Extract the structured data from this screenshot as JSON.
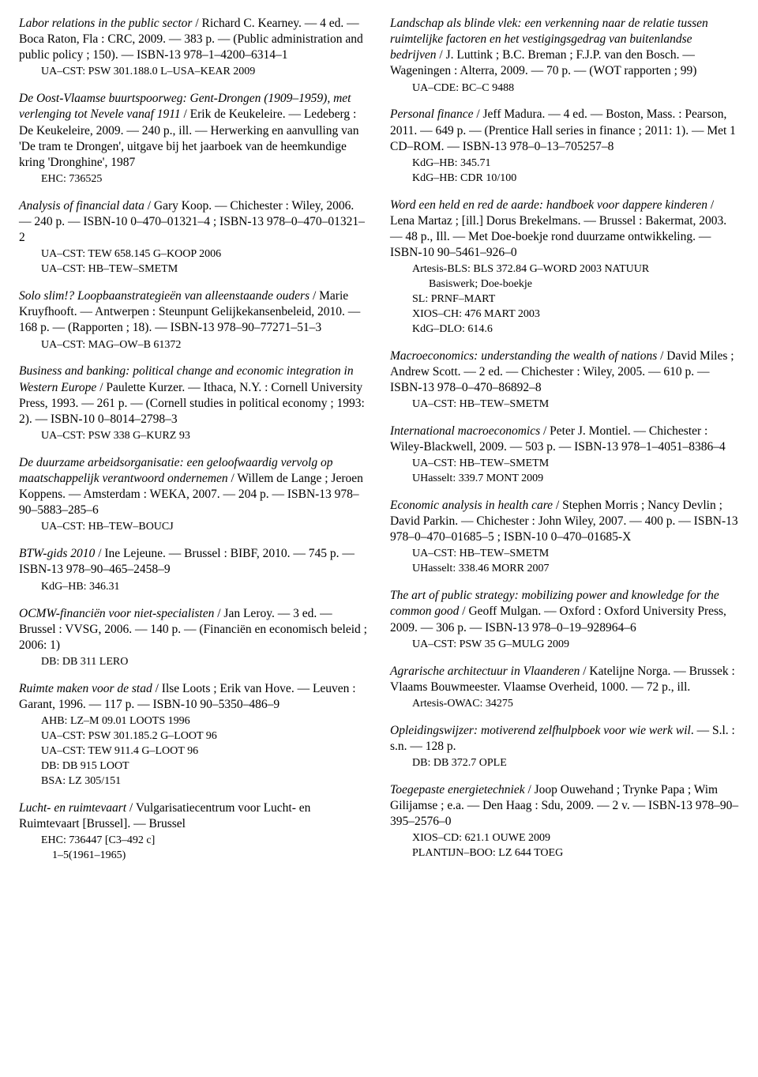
{
  "left": [
    {
      "body": [
        {
          "t": "Labor relations in the public sector",
          "i": true
        },
        {
          "t": " / Richard C. Kearney. — 4 ed. — Boca Raton, Fla : CRC, 2009. — 383 p. — (Public administration and public policy ; 150). — ISBN-13 978–1–4200–6314–1"
        }
      ],
      "shelf": [
        "UA–CST: PSW 301.188.0 L–USA–KEAR 2009"
      ]
    },
    {
      "body": [
        {
          "t": "De Oost-Vlaamse buurtspoorweg: Gent-Drongen (1909–1959), met verlenging tot Nevele vanaf 1911",
          "i": true
        },
        {
          "t": " / Erik de Keukeleire. — Ledeberg : De Keukeleire, 2009. — 240 p., ill. — Herwerking en aanvulling van 'De tram te Drongen', uitgave bij het jaarboek van de heemkundige kring 'Dronghine', 1987"
        }
      ],
      "shelf": [
        "EHC: 736525"
      ]
    },
    {
      "body": [
        {
          "t": "Analysis of financial data",
          "i": true
        },
        {
          "t": " / Gary Koop. — Chichester : Wiley, 2006. — 240 p. — ISBN-10 0–470–01321–4 ; ISBN-13 978–0–470–01321–2"
        }
      ],
      "shelf": [
        "UA–CST: TEW 658.145 G–KOOP 2006",
        "UA–CST: HB–TEW–SMETM"
      ]
    },
    {
      "body": [
        {
          "t": "Solo slim!? Loopbaanstrategieën van alleenstaande ouders",
          "i": true
        },
        {
          "t": " / Marie Kruyfhooft. — Antwerpen : Steunpunt Gelijkekansenbeleid, 2010. — 168 p. — (Rapporten ; 18). — ISBN-13 978–90–77271–51–3"
        }
      ],
      "shelf": [
        "UA–CST: MAG–OW–B 61372"
      ]
    },
    {
      "body": [
        {
          "t": "Business and banking: political change and economic integration in Western Europe",
          "i": true
        },
        {
          "t": " / Paulette Kurzer. — Ithaca, N.Y. : Cornell University Press, 1993. — 261 p. — (Cornell studies in political economy ; 1993: 2). — ISBN-10 0–8014–2798–3"
        }
      ],
      "shelf": [
        "UA–CST: PSW 338 G–KURZ 93"
      ]
    },
    {
      "body": [
        {
          "t": "De duurzame arbeidsorganisatie: een geloofwaardig vervolg op maatschappelijk verantwoord ondernemen",
          "i": true
        },
        {
          "t": " / Willem de Lange ; Jeroen Koppens. — Amsterdam : WEKA, 2007. — 204 p. — ISBN-13 978–90–5883–285–6"
        }
      ],
      "shelf": [
        "UA–CST: HB–TEW–BOUCJ"
      ]
    },
    {
      "body": [
        {
          "t": "BTW-gids 2010",
          "i": true
        },
        {
          "t": " / Ine Lejeune. — Brussel : BIBF, 2010. — 745 p. — ISBN-13 978–90–465–2458–9"
        }
      ],
      "shelf": [
        "KdG–HB: 346.31"
      ]
    },
    {
      "body": [
        {
          "t": "OCMW-financiën voor niet-specialisten",
          "i": true
        },
        {
          "t": " / Jan Leroy. — 3 ed. — Brussel : VVSG, 2006. — 140 p. — (Financiën en economisch beleid ; 2006: 1)"
        }
      ],
      "shelf": [
        "DB: DB 311 LERO"
      ]
    },
    {
      "body": [
        {
          "t": "Ruimte maken voor de stad",
          "i": true
        },
        {
          "t": " / Ilse Loots ; Erik van Hove. — Leuven : Garant, 1996. — 117 p. — ISBN-10 90–5350–486–9"
        }
      ],
      "shelf": [
        "AHB: LZ–M 09.01 LOOTS 1996",
        "UA–CST: PSW 301.185.2 G–LOOT 96",
        "UA–CST: TEW 911.4 G–LOOT 96",
        "DB: DB 915 LOOT",
        "BSA: LZ 305/151"
      ]
    },
    {
      "body": [
        {
          "t": "Lucht- en ruimtevaart",
          "i": true
        },
        {
          "t": " / Vulgarisatiecentrum voor Lucht- en Ruimtevaart [Brussel]. — Brussel"
        }
      ],
      "shelf": [
        "EHC: 736447 [C3–492 c]",
        "    1–5(1961–1965)"
      ]
    }
  ],
  "right": [
    {
      "body": [
        {
          "t": "Landschap als blinde vlek: een verkenning naar de relatie tussen ruimtelijke factoren en het vestigingsgedrag van buitenlandse bedrijven",
          "i": true
        },
        {
          "t": " / J. Luttink ; B.C. Breman ; F.J.P. van den Bosch. — Wageningen : Alterra, 2009. — 70 p. — (WOT rapporten ; 99)"
        }
      ],
      "shelf": [
        "UA–CDE: BC–C 9488"
      ]
    },
    {
      "body": [
        {
          "t": "Personal finance",
          "i": true
        },
        {
          "t": " / Jeff Madura. — 4 ed. — Boston, Mass. : Pearson, 2011. — 649 p. — (Prentice Hall series in finance ; 2011: 1). — Met 1 CD–ROM. — ISBN-13 978–0–13–705257–8"
        }
      ],
      "shelf": [
        "KdG–HB: 345.71",
        "KdG–HB: CDR 10/100"
      ]
    },
    {
      "body": [
        {
          "t": "Word een held en red de aarde: handboek voor dappere kinderen",
          "i": true
        },
        {
          "t": " / Lena Martaz ; [ill.] Dorus Brekelmans. — Brussel : Bakermat, 2003. — 48 p., Ill. — Met Doe-boekje rond duurzame ontwikkeling. — ISBN-10 90–5461–926–0"
        }
      ],
      "shelf": [
        "Artesis-BLS: BLS 372.84 G–WORD 2003 NATUUR",
        "      Basiswerk; Doe-boekje",
        "SL: PRNF–MART",
        "XIOS–CH: 476 MART 2003",
        "KdG–DLO: 614.6"
      ]
    },
    {
      "body": [
        {
          "t": "Macroeconomics: understanding the wealth of nations",
          "i": true
        },
        {
          "t": " / David Miles ; Andrew Scott. — 2 ed. — Chichester : Wiley, 2005. — 610 p. — ISBN-13 978–0–470–86892–8"
        }
      ],
      "shelf": [
        "UA–CST: HB–TEW–SMETM"
      ]
    },
    {
      "body": [
        {
          "t": "International macroeconomics",
          "i": true
        },
        {
          "t": " / Peter J. Montiel. — Chichester : Wiley-Blackwell, 2009. — 503 p. — ISBN-13 978–1–4051–8386–4"
        }
      ],
      "shelf": [
        "UA–CST: HB–TEW–SMETM",
        "UHasselt: 339.7 MONT 2009"
      ]
    },
    {
      "body": [
        {
          "t": "Economic analysis in health care",
          "i": true
        },
        {
          "t": " / Stephen Morris ; Nancy Devlin ; David Parkin. — Chichester : John Wiley, 2007. — 400 p. — ISBN-13 978–0–470–01685–5 ; ISBN-10 0–470–01685-X"
        }
      ],
      "shelf": [
        "UA–CST: HB–TEW–SMETM",
        "UHasselt: 338.46 MORR 2007"
      ]
    },
    {
      "body": [
        {
          "t": "The art of public strategy: mobilizing power and knowledge for the common good",
          "i": true
        },
        {
          "t": " / Geoff Mulgan. — Oxford : Oxford University Press, 2009. — 306 p. — ISBN-13 978–0–19–928964–6"
        }
      ],
      "shelf": [
        "UA–CST: PSW 35 G–MULG 2009"
      ]
    },
    {
      "body": [
        {
          "t": "Agrarische architectuur in Vlaanderen",
          "i": true
        },
        {
          "t": " / Katelijne Norga. — Brussek : Vlaams Bouwmeester. Vlaamse Overheid, 1000. — 72 p., ill."
        }
      ],
      "shelf": [
        "Artesis-OWAC: 34275"
      ]
    },
    {
      "body": [
        {
          "t": "Opleidingswijzer: motiverend zelfhulpboek voor wie werk wil",
          "i": true
        },
        {
          "t": ". — S.l. : s.n. — 128 p."
        }
      ],
      "shelf": [
        "DB: DB 372.7 OPLE"
      ]
    },
    {
      "body": [
        {
          "t": "Toegepaste energietechniek",
          "i": true
        },
        {
          "t": " / Joop Ouwehand ; Trynke Papa ; Wim Gilijamse ; e.a. — Den Haag : Sdu, 2009. — 2 v. — ISBN-13 978–90–395–2576–0"
        }
      ],
      "shelf": [
        "XIOS–CD: 621.1 OUWE 2009",
        "PLANTIJN–BOO: LZ 644 TOEG"
      ]
    }
  ]
}
